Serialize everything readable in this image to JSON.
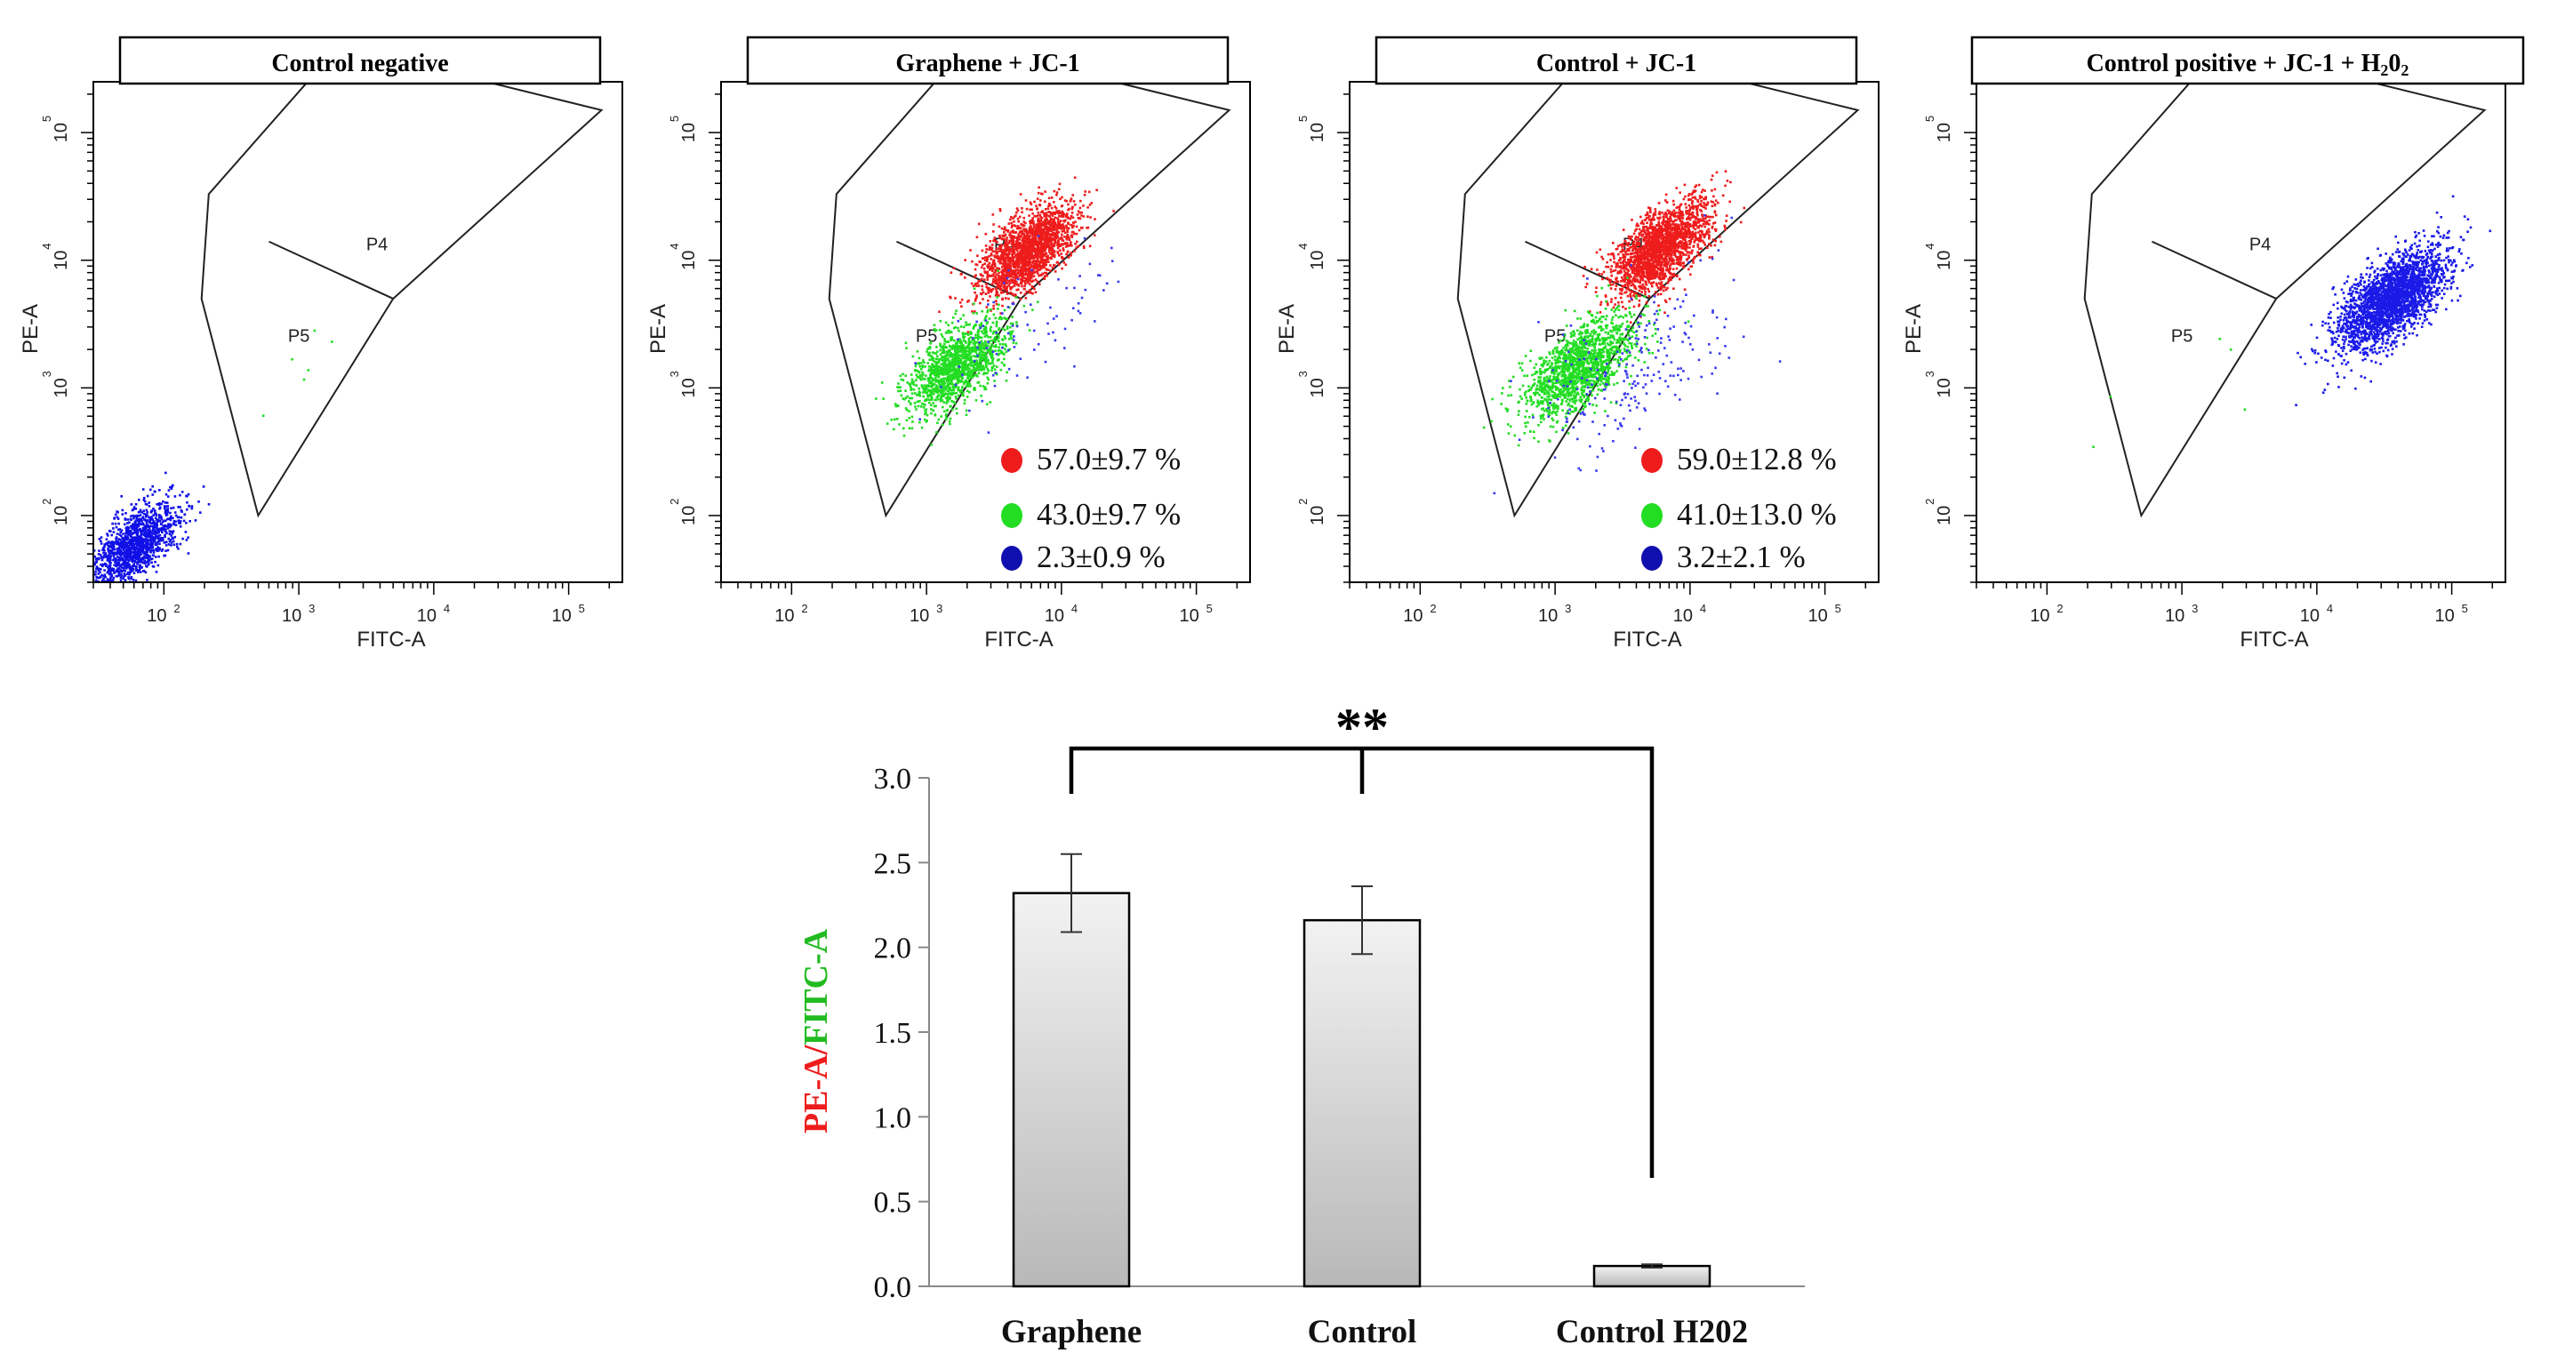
{
  "chart_data": [
    {
      "type": "scatter",
      "title": "Control negative",
      "xlabel": "FITC-A",
      "ylabel": "PE-A",
      "x_scale": "log",
      "y_scale": "log",
      "xlim": [
        30,
        250000
      ],
      "ylim": [
        30,
        250000
      ],
      "x_ticks": [
        {
          "value": 100,
          "base": "10",
          "exp": "2"
        },
        {
          "value": 1000,
          "base": "10",
          "exp": "3"
        },
        {
          "value": 10000,
          "base": "10",
          "exp": "4"
        },
        {
          "value": 100000,
          "base": "10",
          "exp": "5"
        }
      ],
      "y_ticks": [
        {
          "value": 100,
          "base": "10",
          "exp": "2"
        },
        {
          "value": 1000,
          "base": "10",
          "exp": "3"
        },
        {
          "value": 10000,
          "base": "10",
          "exp": "4"
        },
        {
          "value": 100000,
          "base": "10",
          "exp": "5"
        }
      ],
      "gates": {
        "P4": "P4",
        "P5": "P5"
      },
      "populations": [
        {
          "color": "#1010e6",
          "center": [
            60,
            60
          ],
          "count": 1300,
          "spread": 0.18
        },
        {
          "color": "#22dd22",
          "center": [
            1100,
            1100
          ],
          "count": 6,
          "spread": 0.3
        }
      ],
      "stats": []
    },
    {
      "type": "scatter",
      "title": "Graphene + JC-1",
      "xlabel": "FITC-A",
      "ylabel": "PE-A",
      "x_scale": "log",
      "y_scale": "log",
      "xlim": [
        30,
        250000
      ],
      "ylim": [
        30,
        250000
      ],
      "x_ticks": [
        {
          "value": 100,
          "base": "10",
          "exp": "2"
        },
        {
          "value": 1000,
          "base": "10",
          "exp": "3"
        },
        {
          "value": 10000,
          "base": "10",
          "exp": "4"
        },
        {
          "value": 100000,
          "base": "10",
          "exp": "5"
        }
      ],
      "y_ticks": [
        {
          "value": 100,
          "base": "10",
          "exp": "2"
        },
        {
          "value": 1000,
          "base": "10",
          "exp": "3"
        },
        {
          "value": 10000,
          "base": "10",
          "exp": "4"
        },
        {
          "value": 100000,
          "base": "10",
          "exp": "5"
        }
      ],
      "gates": {
        "P4": "P4",
        "P5": "P5"
      },
      "populations": [
        {
          "color": "#ee1c1c",
          "center": [
            5500,
            12000
          ],
          "count": 1900,
          "spread": 0.2
        },
        {
          "color": "#22dd22",
          "center": [
            1600,
            1500
          ],
          "count": 1400,
          "spread": 0.2
        },
        {
          "color": "#3a3aee",
          "center": [
            5000,
            3000
          ],
          "count": 90,
          "spread": 0.35
        }
      ],
      "stats": [
        {
          "color": "#ee1c1c",
          "text": "57.0±9.7 %"
        },
        {
          "color": "#22dd22",
          "text": "43.0±9.7 %"
        },
        {
          "color": "#1010b0",
          "text": "2.3±0.9 %"
        }
      ]
    },
    {
      "type": "scatter",
      "title": "Control + JC-1",
      "xlabel": "FITC-A",
      "ylabel": "PE-A",
      "x_scale": "log",
      "y_scale": "log",
      "xlim": [
        30,
        250000
      ],
      "ylim": [
        30,
        250000
      ],
      "x_ticks": [
        {
          "value": 100,
          "base": "10",
          "exp": "2"
        },
        {
          "value": 1000,
          "base": "10",
          "exp": "3"
        },
        {
          "value": 10000,
          "base": "10",
          "exp": "4"
        },
        {
          "value": 100000,
          "base": "10",
          "exp": "5"
        }
      ],
      "y_ticks": [
        {
          "value": 100,
          "base": "10",
          "exp": "2"
        },
        {
          "value": 1000,
          "base": "10",
          "exp": "3"
        },
        {
          "value": 10000,
          "base": "10",
          "exp": "4"
        },
        {
          "value": 100000,
          "base": "10",
          "exp": "5"
        }
      ],
      "gates": {
        "P4": "P4",
        "P5": "P5"
      },
      "populations": [
        {
          "color": "#ee1c1c",
          "center": [
            6000,
            13000
          ],
          "count": 2000,
          "spread": 0.2
        },
        {
          "color": "#22dd22",
          "center": [
            1500,
            1500
          ],
          "count": 1500,
          "spread": 0.22
        },
        {
          "color": "#3a3aee",
          "center": [
            4000,
            1500
          ],
          "count": 220,
          "spread": 0.4
        }
      ],
      "stats": [
        {
          "color": "#ee1c1c",
          "text": "59.0±12.8 %"
        },
        {
          "color": "#22dd22",
          "text": "41.0±13.0 %"
        },
        {
          "color": "#1010b0",
          "text": "3.2±2.1 %"
        }
      ]
    },
    {
      "type": "scatter",
      "title": "Control positive + JC-1 + H",
      "title_sub": "2",
      "title_mid": "0",
      "title_sub2": "2",
      "xlabel": "FITC-A",
      "ylabel": "PE-A",
      "x_scale": "log",
      "y_scale": "log",
      "xlim": [
        30,
        250000
      ],
      "ylim": [
        30,
        250000
      ],
      "x_ticks": [
        {
          "value": 100,
          "base": "10",
          "exp": "2"
        },
        {
          "value": 1000,
          "base": "10",
          "exp": "3"
        },
        {
          "value": 10000,
          "base": "10",
          "exp": "4"
        },
        {
          "value": 100000,
          "base": "10",
          "exp": "5"
        }
      ],
      "y_ticks": [
        {
          "value": 100,
          "base": "10",
          "exp": "2"
        },
        {
          "value": 1000,
          "base": "10",
          "exp": "3"
        },
        {
          "value": 10000,
          "base": "10",
          "exp": "4"
        },
        {
          "value": 100000,
          "base": "10",
          "exp": "5"
        }
      ],
      "gates": {
        "P4": "P4",
        "P5": "P5"
      },
      "populations": [
        {
          "color": "#1a1ae8",
          "center": [
            35000,
            5000
          ],
          "count": 2600,
          "spread": 0.22
        },
        {
          "color": "#22dd22",
          "center": [
            1200,
            1200
          ],
          "count": 5,
          "spread": 0.3
        }
      ],
      "stats": []
    },
    {
      "type": "bar",
      "categories": [
        "Graphene",
        "Control",
        "Control H202"
      ],
      "values": [
        2.32,
        2.16,
        0.12
      ],
      "errors": [
        0.23,
        0.2,
        0.01
      ],
      "ylabel_parts": [
        {
          "text": "PE-A",
          "color": "#ee1c1c"
        },
        {
          "text": "/",
          "color": "#ee1c1c"
        },
        {
          "text": "FITC-A",
          "color": "#22bb22"
        }
      ],
      "ylim": [
        0,
        3.0
      ],
      "y_ticks": [
        "0.0",
        "0.5",
        "1.0",
        "1.5",
        "2.0",
        "2.5",
        "3.0"
      ],
      "significance": {
        "label": "**",
        "groups": [
          "Graphene",
          "Control",
          "Control H202"
        ]
      }
    }
  ]
}
